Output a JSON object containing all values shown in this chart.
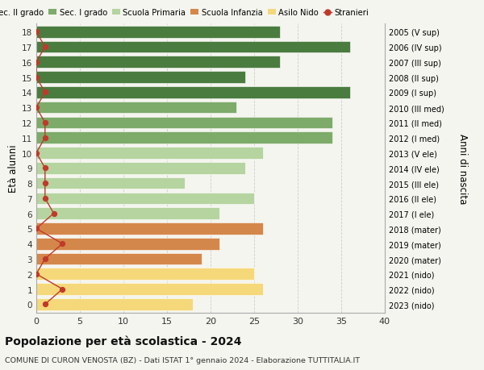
{
  "ages": [
    18,
    17,
    16,
    15,
    14,
    13,
    12,
    11,
    10,
    9,
    8,
    7,
    6,
    5,
    4,
    3,
    2,
    1,
    0
  ],
  "labels_right": [
    "2005 (V sup)",
    "2006 (IV sup)",
    "2007 (III sup)",
    "2008 (II sup)",
    "2009 (I sup)",
    "2010 (III med)",
    "2011 (II med)",
    "2012 (I med)",
    "2013 (V ele)",
    "2014 (IV ele)",
    "2015 (III ele)",
    "2016 (II ele)",
    "2017 (I ele)",
    "2018 (mater)",
    "2019 (mater)",
    "2020 (mater)",
    "2021 (nido)",
    "2022 (nido)",
    "2023 (nido)"
  ],
  "bar_values": [
    28,
    36,
    28,
    24,
    36,
    23,
    34,
    34,
    26,
    24,
    17,
    25,
    21,
    26,
    21,
    19,
    25,
    26,
    18
  ],
  "bar_colors": [
    "#4a7c3f",
    "#4a7c3f",
    "#4a7c3f",
    "#4a7c3f",
    "#4a7c3f",
    "#7dab6a",
    "#7dab6a",
    "#7dab6a",
    "#b5d4a0",
    "#b5d4a0",
    "#b5d4a0",
    "#b5d4a0",
    "#b5d4a0",
    "#d4874a",
    "#d4874a",
    "#d4874a",
    "#f5d87a",
    "#f5d87a",
    "#f5d87a"
  ],
  "stranieri_values": [
    0,
    1,
    0,
    0,
    1,
    0,
    1,
    1,
    0,
    1,
    1,
    1,
    2,
    0,
    3,
    1,
    0,
    3,
    1
  ],
  "legend_labels": [
    "Sec. II grado",
    "Sec. I grado",
    "Scuola Primaria",
    "Scuola Infanzia",
    "Asilo Nido",
    "Stranieri"
  ],
  "legend_colors": [
    "#4a7c3f",
    "#7dab6a",
    "#b5d4a0",
    "#d4874a",
    "#f5d87a",
    "#c0392b"
  ],
  "title": "Popolazione per età scolastica - 2024",
  "subtitle": "COMUNE DI CURON VENOSTA (BZ) - Dati ISTAT 1° gennaio 2024 - Elaborazione TUTTITALIA.IT",
  "ylabel_left": "Età alunni",
  "ylabel_right": "Anni di nascita",
  "xlim": [
    0,
    40
  ],
  "background_color": "#f5f5ef",
  "stranieri_color": "#c0392b"
}
